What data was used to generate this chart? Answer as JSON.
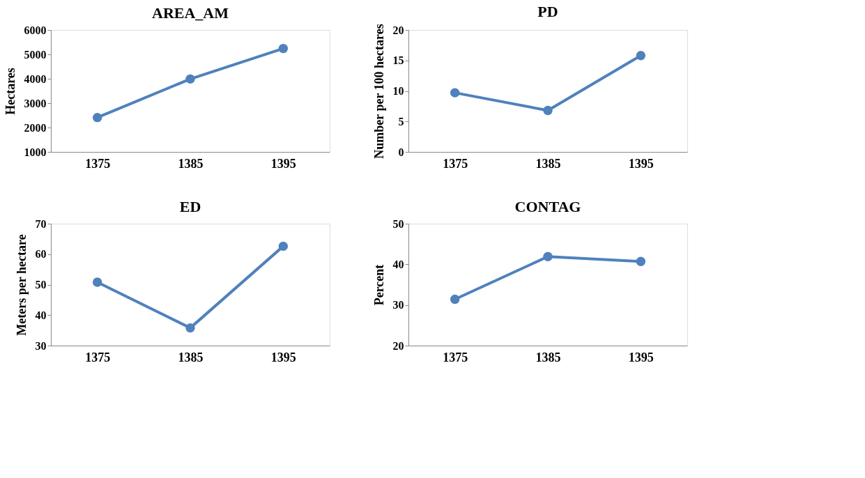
{
  "chart_data": [
    {
      "type": "line",
      "title": "AREA_AM",
      "ylabel": "Hectares",
      "categories": [
        "1375",
        "1385",
        "1395"
      ],
      "series": [
        {
          "color": "#4f81bd",
          "values": [
            2410,
            3990,
            5240
          ]
        }
      ],
      "ylim": [
        1000,
        6000
      ],
      "yticks": [
        1000,
        2000,
        3000,
        4000,
        5000,
        6000
      ],
      "marker": "circle",
      "grid": false
    },
    {
      "type": "line",
      "title": "PD",
      "ylabel": "Number per 100 hectares",
      "categories": [
        "1375",
        "1385",
        "1395"
      ],
      "series": [
        {
          "color": "#4f81bd",
          "values": [
            9.7,
            6.8,
            15.8
          ]
        }
      ],
      "ylim": [
        0,
        20
      ],
      "yticks": [
        0,
        5,
        10,
        15,
        20
      ],
      "marker": "circle",
      "grid": false
    },
    {
      "type": "line",
      "title": "ED",
      "ylabel": "Meters per hectare",
      "categories": [
        "1375",
        "1385",
        "1395"
      ],
      "series": [
        {
          "color": "#4f81bd",
          "values": [
            50.8,
            35.8,
            62.6
          ]
        }
      ],
      "ylim": [
        30,
        70
      ],
      "yticks": [
        30,
        40,
        50,
        60,
        70
      ],
      "marker": "circle",
      "grid": false
    },
    {
      "type": "line",
      "title": "CONTAG",
      "ylabel": "Percent",
      "categories": [
        "1375",
        "1385",
        "1395"
      ],
      "series": [
        {
          "color": "#4f81bd",
          "values": [
            31.4,
            41.9,
            40.7
          ]
        }
      ],
      "ylim": [
        20,
        50
      ],
      "yticks": [
        20,
        30,
        40,
        50
      ],
      "marker": "circle",
      "grid": false
    }
  ]
}
